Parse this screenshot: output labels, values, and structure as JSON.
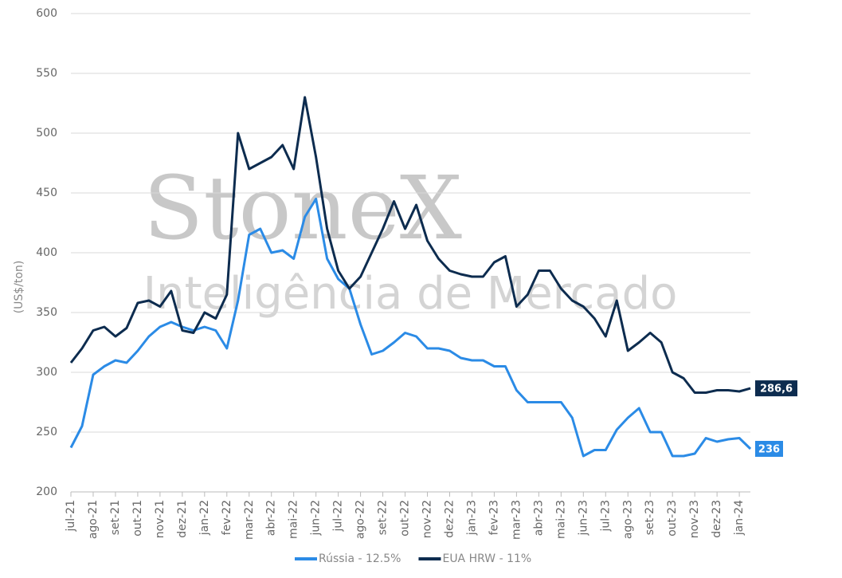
{
  "chart_data": {
    "type": "line",
    "watermark": {
      "brand": "StoneX",
      "tagline": "Inteligência de Mercado"
    },
    "ylabel": "(US$/ton)",
    "categories": [
      "jul-21",
      null,
      "ago-21",
      null,
      "set-21",
      null,
      "out-21",
      null,
      "nov-21",
      null,
      "dez-21",
      null,
      "jan-22",
      null,
      "fev-22",
      null,
      "mar-22",
      null,
      "abr-22",
      null,
      "mai-22",
      null,
      "jun-22",
      null,
      "jul-22",
      null,
      "ago-22",
      null,
      "set-22",
      null,
      "out-22",
      null,
      "nov-22",
      null,
      "dez-22",
      null,
      "jan-23",
      null,
      "fev-23",
      null,
      "mar-23",
      null,
      "abr-23",
      null,
      "mai-23",
      null,
      "jun-23",
      null,
      "jul-23",
      null,
      "ago-23",
      null,
      "set-23",
      null,
      "out-23",
      null,
      "nov-23",
      null,
      "dez-23",
      null,
      "jan-24",
      null
    ],
    "series": [
      {
        "name": "Rússia - 12.5%",
        "color": "#2b8be6",
        "values": [
          237,
          255,
          298,
          305,
          310,
          308,
          318,
          330,
          338,
          342,
          338,
          335,
          338,
          335,
          320,
          360,
          415,
          420,
          400,
          402,
          395,
          430,
          445,
          395,
          378,
          370,
          340,
          315,
          318,
          325,
          333,
          330,
          320,
          320,
          318,
          312,
          310,
          310,
          305,
          305,
          285,
          275,
          275,
          275,
          275,
          262,
          230,
          235,
          235,
          252,
          262,
          270,
          250,
          250,
          230,
          230,
          232,
          245,
          242,
          244,
          245,
          236
        ],
        "value_labels": [
          null,
          null,
          null,
          null,
          null,
          null,
          null,
          null,
          null,
          null,
          null,
          null,
          null,
          null,
          null,
          null,
          null,
          null,
          null,
          null,
          null,
          null,
          null,
          null,
          null,
          null,
          null,
          null,
          null,
          null,
          null,
          null,
          null,
          null,
          null,
          null,
          null,
          null,
          null,
          null,
          null,
          null,
          null,
          null,
          null,
          null,
          null,
          null,
          null,
          null,
          null,
          null,
          null,
          null,
          null,
          null,
          null,
          null,
          null,
          null,
          null,
          "236"
        ]
      },
      {
        "name": "EUA HRW - 11%",
        "color": "#0d2c4f",
        "values": [
          308,
          320,
          335,
          338,
          330,
          337,
          358,
          360,
          355,
          368,
          335,
          333,
          350,
          345,
          365,
          500,
          470,
          475,
          480,
          490,
          470,
          530,
          480,
          420,
          385,
          370,
          380,
          400,
          420,
          443,
          420,
          440,
          410,
          395,
          385,
          382,
          380,
          380,
          392,
          397,
          355,
          365,
          385,
          385,
          370,
          360,
          355,
          345,
          330,
          360,
          318,
          325,
          333,
          325,
          300,
          295,
          283,
          283,
          285,
          285,
          284,
          286.6
        ],
        "value_labels": [
          null,
          null,
          null,
          null,
          null,
          null,
          null,
          null,
          null,
          null,
          null,
          null,
          null,
          null,
          null,
          null,
          null,
          null,
          null,
          null,
          null,
          null,
          null,
          null,
          null,
          null,
          null,
          null,
          null,
          null,
          null,
          null,
          null,
          null,
          null,
          null,
          null,
          null,
          null,
          null,
          null,
          null,
          null,
          null,
          null,
          null,
          null,
          null,
          null,
          null,
          null,
          null,
          null,
          null,
          null,
          null,
          null,
          null,
          null,
          null,
          null,
          "286,6"
        ]
      }
    ],
    "ylim": [
      200,
      600
    ],
    "yticks": [
      200,
      250,
      300,
      350,
      400,
      450,
      500,
      550,
      600
    ],
    "grid": true,
    "legend": "bottom"
  }
}
